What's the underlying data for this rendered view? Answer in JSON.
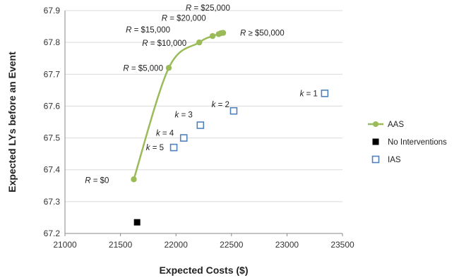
{
  "chart_data": {
    "type": "scatter",
    "title": "",
    "xlabel": "Expected Costs ($)",
    "ylabel": "Expected LYs before an Event",
    "xlim": [
      21000,
      23500
    ],
    "ylim": [
      67.2,
      67.9
    ],
    "x_ticks": [
      "21000",
      "21500",
      "22000",
      "22500",
      "23000",
      "23500"
    ],
    "y_ticks": [
      "67.2",
      "67.3",
      "67.4",
      "67.5",
      "67.6",
      "67.7",
      "67.8",
      "67.9"
    ],
    "grid": "horizontal",
    "legend_position": "right",
    "series": [
      {
        "name": "AAS",
        "style": "line-markers",
        "color": "#9bbb59",
        "points": [
          {
            "x": 21620,
            "y": 67.37,
            "label": "R = $0"
          },
          {
            "x": 21935,
            "y": 67.72,
            "label": "R = $5,000"
          },
          {
            "x": 22210,
            "y": 67.8,
            "label": "R = $10,000"
          },
          {
            "x": 22330,
            "y": 67.82,
            "label": "R = $15,000"
          },
          {
            "x": 22385,
            "y": 67.826,
            "label": "R = $20,000"
          },
          {
            "x": 22405,
            "y": 67.829,
            "label": "R = $25,000"
          },
          {
            "x": 22425,
            "y": 67.83,
            "label": "R ≥ $50,000"
          }
        ]
      },
      {
        "name": "No Interventions",
        "style": "filled-square",
        "color": "#000000",
        "points": [
          {
            "x": 21650,
            "y": 67.235,
            "label": ""
          }
        ]
      },
      {
        "name": "IAS",
        "style": "hollow-square",
        "color": "#4f81bd",
        "points": [
          {
            "x": 21980,
            "y": 67.47,
            "label": "k = 5"
          },
          {
            "x": 22070,
            "y": 67.5,
            "label": "k = 4"
          },
          {
            "x": 22220,
            "y": 67.54,
            "label": "k = 3"
          },
          {
            "x": 22520,
            "y": 67.585,
            "label": "k = 2"
          },
          {
            "x": 23340,
            "y": 67.64,
            "label": "k = 1"
          }
        ]
      }
    ]
  }
}
